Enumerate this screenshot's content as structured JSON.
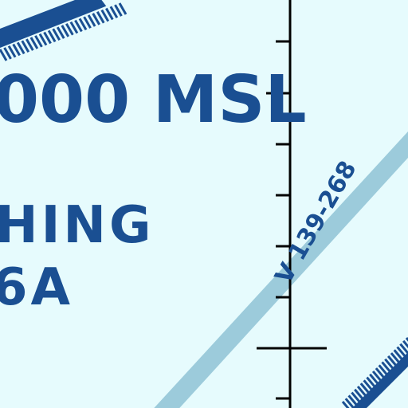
{
  "map": {
    "altitude_label": "000 MSL",
    "area_name": "HING",
    "area_id": "6A",
    "airway_label": "V 139-268"
  },
  "colors": {
    "background": "#e6fbfd",
    "boundary": "#1a4f92",
    "airway": "#9ccbdb",
    "tick_line": "#000000"
  }
}
